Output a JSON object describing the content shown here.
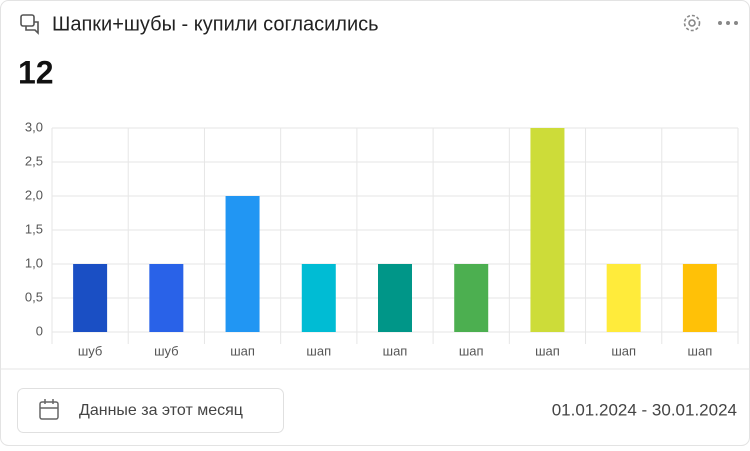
{
  "chart_data": {
    "type": "bar",
    "title": "Шапки+шубы - купили согласились",
    "categories": [
      "шуб",
      "шуб",
      "шап",
      "шап",
      "шап",
      "шап",
      "шап",
      "шап",
      "шап"
    ],
    "values": [
      1,
      1,
      2,
      1,
      1,
      1,
      3,
      1,
      1
    ],
    "colors": [
      "#1a4fc4",
      "#2962e8",
      "#2196f3",
      "#00bcd4",
      "#009688",
      "#4caf50",
      "#cddc39",
      "#ffeb3b",
      "#ffc107"
    ],
    "ylim": [
      0,
      3
    ],
    "yticks": [
      0,
      {
        "value": 0.5,
        "label": "0,5"
      },
      {
        "value": 1,
        "label": "1,0"
      },
      {
        "value": 1.5,
        "label": "1,5"
      },
      {
        "value": 2,
        "label": "2,0"
      },
      {
        "value": 2.5,
        "label": "2,5"
      },
      {
        "value": 3,
        "label": "3,0"
      }
    ],
    "grid": true
  },
  "total": 12,
  "footer": {
    "button": "Данные за этот месяц",
    "date_range": "01.01.2024 - 30.01.2024"
  }
}
